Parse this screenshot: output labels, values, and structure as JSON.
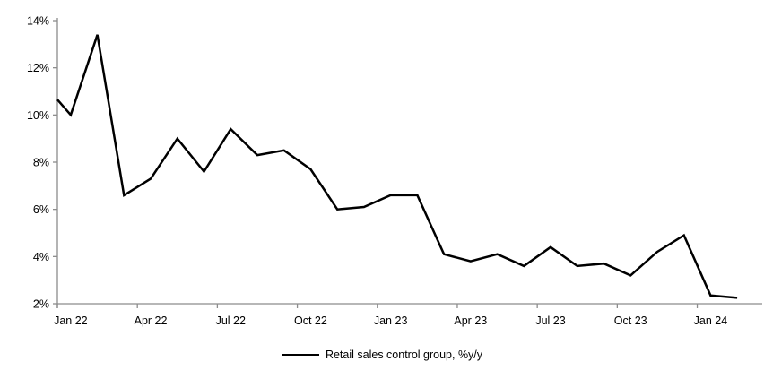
{
  "chart_data": {
    "type": "line",
    "title": "",
    "xlabel": "",
    "ylabel": "",
    "x": [
      "Jan 22",
      "Feb 22",
      "Mar 22",
      "Apr 22",
      "May 22",
      "Jun 22",
      "Jul 22",
      "Aug 22",
      "Sep 22",
      "Oct 22",
      "Nov 22",
      "Dec 22",
      "Jan 23",
      "Feb 23",
      "Mar 23",
      "Apr 23",
      "May 23",
      "Jun 23",
      "Jul 23",
      "Aug 23",
      "Sep 23",
      "Oct 23",
      "Nov 23",
      "Dec 23",
      "Jan 24",
      "Feb 24"
    ],
    "series": [
      {
        "name": "Retail sales control group, %y/y",
        "color": "#000000",
        "values": [
          10.0,
          13.4,
          6.6,
          7.3,
          9.0,
          7.6,
          9.4,
          8.3,
          8.5,
          7.7,
          6.0,
          6.1,
          6.6,
          6.6,
          4.1,
          3.8,
          4.1,
          3.6,
          4.4,
          3.6,
          3.7,
          3.2,
          4.2,
          4.9,
          2.35,
          2.25
        ]
      }
    ],
    "axis_entry_value": 10.65,
    "ylim": [
      2,
      14
    ],
    "y_tick_labels": [
      "2%",
      "4%",
      "6%",
      "8%",
      "10%",
      "12%",
      "14%"
    ],
    "y_tick_values": [
      2,
      4,
      6,
      8,
      10,
      12,
      14
    ],
    "x_tick_labels": [
      "Jan 22",
      "Apr 22",
      "Jul 22",
      "Oct 22",
      "Jan 23",
      "Apr 23",
      "Jul 23",
      "Oct 23",
      "Jan 24"
    ],
    "x_tick_every_months": 3,
    "grid": false,
    "legend_position": "bottom-center",
    "axis_color": "#8c8c8c",
    "label_color": "#000000",
    "line_width": 2.5
  }
}
